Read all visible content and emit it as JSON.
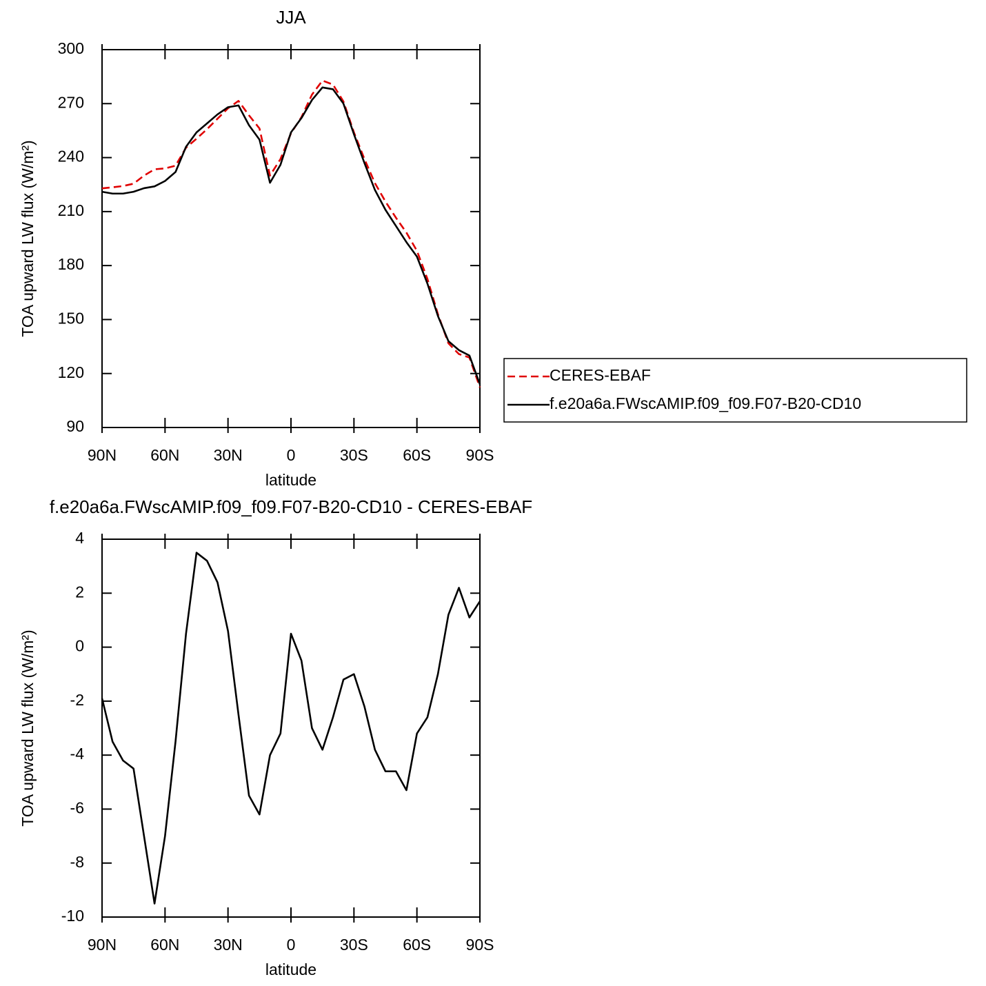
{
  "chart_data": [
    {
      "type": "line",
      "title": "JJA",
      "xlabel": "latitude",
      "ylabel": "TOA upward LW flux (W/m²)",
      "x": [
        90,
        85,
        80,
        75,
        70,
        65,
        60,
        55,
        50,
        45,
        40,
        35,
        30,
        25,
        20,
        15,
        10,
        5,
        0,
        -5,
        -10,
        -15,
        -20,
        -25,
        -30,
        -35,
        -40,
        -45,
        -50,
        -55,
        -60,
        -65,
        -70,
        -75,
        -80,
        -85,
        -90
      ],
      "series": [
        {
          "name": "CERES-EBAF",
          "color": "#e00000",
          "dash": true,
          "values": [
            222.9,
            223.5,
            224.2,
            225.5,
            230,
            233.5,
            234,
            235.5,
            245.5,
            250.5,
            255.8,
            261.6,
            267.4,
            271.5,
            263.5,
            256.2,
            230,
            239.2,
            253.5,
            262.5,
            275,
            282.8,
            280.6,
            271.2,
            254,
            239.2,
            225.8,
            215.6,
            206.6,
            198.3,
            188.2,
            172.6,
            153,
            136.8,
            130.8,
            128.9,
            112.3
          ]
        },
        {
          "name": "f.e20a6a.FWscAMIP.f09_f09.F07-B20-CD10",
          "color": "#000000",
          "dash": false,
          "values": [
            221,
            220,
            220,
            221,
            223,
            224,
            227,
            232,
            246,
            254,
            259,
            264,
            268,
            269,
            258,
            250,
            226,
            236,
            254,
            262,
            272,
            279,
            278,
            270,
            253,
            237,
            222,
            211,
            202,
            193,
            185,
            170,
            152,
            138,
            133,
            130,
            114
          ]
        }
      ],
      "xlim": [
        90,
        -90
      ],
      "xticks": [
        {
          "value": 90,
          "label": "90N"
        },
        {
          "value": 60,
          "label": "60N"
        },
        {
          "value": 30,
          "label": "30N"
        },
        0,
        {
          "value": -30,
          "label": "30S"
        },
        {
          "value": -60,
          "label": "60S"
        },
        {
          "value": -90,
          "label": "90S"
        }
      ],
      "ylim": [
        90,
        300
      ],
      "yticks": [
        90,
        120,
        150,
        180,
        210,
        240,
        270,
        300
      ],
      "legend": "right"
    },
    {
      "type": "line",
      "title": "f.e20a6a.FWscAMIP.f09_f09.F07-B20-CD10 - CERES-EBAF",
      "xlabel": "latitude",
      "ylabel": "TOA upward LW flux (W/m²)",
      "x": [
        90,
        85,
        80,
        75,
        70,
        65,
        60,
        55,
        50,
        45,
        40,
        35,
        30,
        25,
        20,
        15,
        10,
        5,
        0,
        -5,
        -10,
        -15,
        -20,
        -25,
        -30,
        -35,
        -40,
        -45,
        -50,
        -55,
        -60,
        -65,
        -70,
        -75,
        -80,
        -85,
        -90
      ],
      "series": [
        {
          "color": "#000000",
          "dash": false,
          "values": [
            -1.9,
            -3.5,
            -4.2,
            -4.5,
            -7,
            -9.5,
            -7,
            -3.5,
            0.5,
            3.5,
            3.2,
            2.4,
            0.6,
            -2.5,
            -5.5,
            -6.2,
            -4,
            -3.2,
            0.5,
            -0.5,
            -3,
            -3.8,
            -2.6,
            -1.2,
            -1,
            -2.2,
            -3.8,
            -4.6,
            -4.6,
            -5.3,
            -3.2,
            -2.6,
            -1,
            1.2,
            2.2,
            1.1,
            1.7
          ]
        }
      ],
      "xlim": [
        90,
        -90
      ],
      "xticks": [
        {
          "value": 90,
          "label": "90N"
        },
        {
          "value": 60,
          "label": "60N"
        },
        {
          "value": 30,
          "label": "30N"
        },
        0,
        {
          "value": -30,
          "label": "30S"
        },
        {
          "value": -60,
          "label": "60S"
        },
        {
          "value": -90,
          "label": "90S"
        }
      ],
      "ylim": [
        -10,
        4
      ],
      "yticks": [
        -10,
        -8,
        -6,
        -4,
        -2,
        0,
        2,
        4
      ]
    }
  ]
}
